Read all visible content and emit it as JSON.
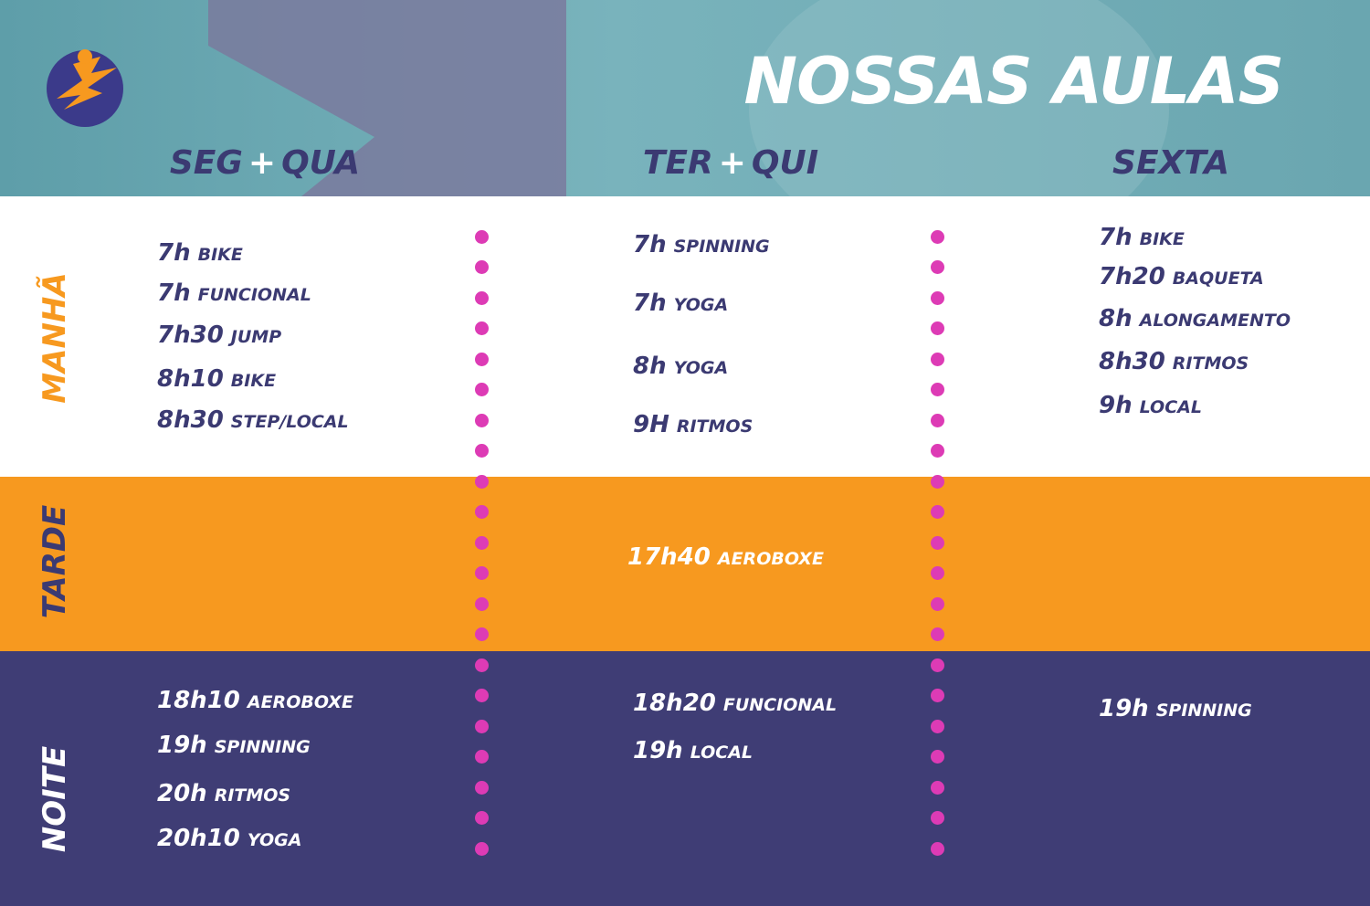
{
  "header": {
    "title": "NOSSAS AULAS"
  },
  "columns": [
    {
      "day_parts": [
        "SEG",
        "+",
        "QUA"
      ]
    },
    {
      "day_parts": [
        "TER",
        "+",
        "QUI"
      ]
    },
    {
      "day_parts": [
        "SEXTA"
      ]
    }
  ],
  "periods": [
    {
      "label": "MANHÃ",
      "columns": [
        [
          {
            "time": "7h",
            "name": "BIKE"
          },
          {
            "time": "7h",
            "name": "FUNCIONAL"
          },
          {
            "time": "7h30",
            "name": "JUMP"
          },
          {
            "time": "8h10",
            "name": "BIKE"
          },
          {
            "time": "8h30",
            "name": "STEP/LOCAL"
          }
        ],
        [
          {
            "time": "7h",
            "name": "SPINNING"
          },
          {
            "time": "7h",
            "name": "YOGA"
          },
          {
            "time": "8h",
            "name": "YOGA"
          },
          {
            "time": "9H",
            "name": "RITMOS"
          }
        ],
        [
          {
            "time": "7h",
            "name": "BIKE"
          },
          {
            "time": "7h20",
            "name": "BAQUETA"
          },
          {
            "time": "8h",
            "name": "ALONGAMENTO"
          },
          {
            "time": "8h30",
            "name": "RITMOS"
          },
          {
            "time": "9h",
            "name": "LOCAL"
          }
        ]
      ]
    },
    {
      "label": "TARDE",
      "columns": [
        [],
        [
          {
            "time": "17h40",
            "name": "AEROBOXE"
          }
        ],
        []
      ]
    },
    {
      "label": "NOITE",
      "columns": [
        [
          {
            "time": "18h10",
            "name": "AEROBOXE"
          },
          {
            "time": "19h",
            "name": "SPINNING"
          },
          {
            "time": "20h",
            "name": "RITMOS"
          },
          {
            "time": "20h10",
            "name": "YOGA"
          }
        ],
        [
          {
            "time": "18h20",
            "name": "FUNCIONAL"
          },
          {
            "time": "19h",
            "name": "LOCAL"
          }
        ],
        [
          {
            "time": "19h",
            "name": "SPINNING"
          }
        ]
      ]
    }
  ]
}
